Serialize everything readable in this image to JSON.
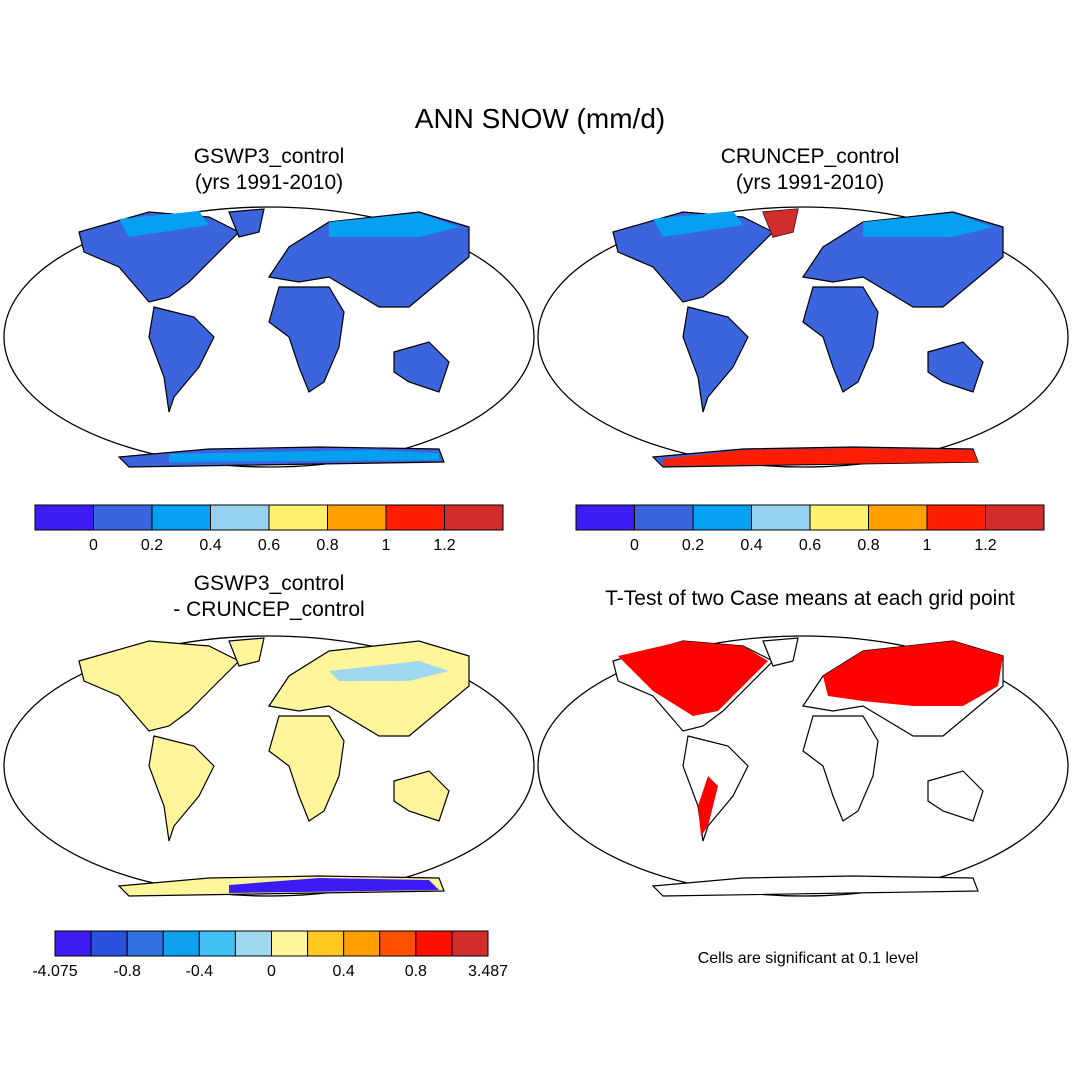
{
  "title": "ANN SNOW (mm/d)",
  "panels": [
    {
      "title": [
        "GSWP3_control",
        "(yrs 1991-2010)"
      ]
    },
    {
      "title": [
        "CRUNCEP_control",
        "(yrs 1991-2010)"
      ]
    },
    {
      "title": [
        "GSWP3_control",
        "- CRUNCEP_control"
      ]
    },
    {
      "title": [
        "T-Test of two Case means at each grid point"
      ]
    }
  ],
  "colorbars": [
    {
      "colors": [
        "#3b1cf5",
        "#3c64dc",
        "#05a0f0",
        "#96d2f0",
        "#fff06e",
        "#ffa000",
        "#ff1e00",
        "#d22d2d"
      ],
      "labels": [
        0,
        0.2,
        0.4,
        0.6,
        0.8,
        1,
        1.2
      ]
    },
    {
      "colors": [
        "#3b1cf5",
        "#3c64dc",
        "#05a0f0",
        "#96d2f0",
        "#fff06e",
        "#ffa000",
        "#ff1e00",
        "#d22d2d"
      ],
      "labels": [
        0,
        0.2,
        0.4,
        0.6,
        0.8,
        1,
        1.2
      ]
    },
    {
      "colors": [
        "#3b1cf5",
        "#2a50e0",
        "#3270e0",
        "#10a0f0",
        "#40c0f5",
        "#a0d8f0",
        "#fff59a",
        "#ffc820",
        "#ffa000",
        "#ff5000",
        "#ff1000",
        "#d22d2d"
      ],
      "labels": [
        -4.075,
        -0.8,
        -0.4,
        0,
        0.4,
        0.8,
        3.487
      ]
    }
  ],
  "footnote": "Cells are significant at 0.1 level"
}
